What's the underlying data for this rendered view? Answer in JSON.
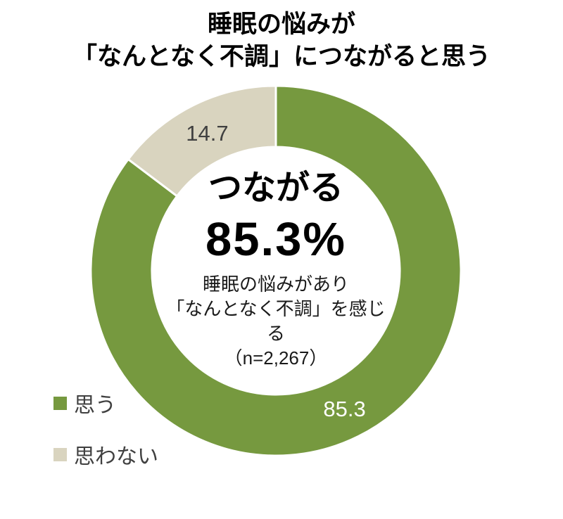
{
  "title": {
    "line1": "睡眠の悩みが",
    "line2": "「なんとなく不調」につながると思う"
  },
  "center": {
    "headline": "つながる",
    "percent": "85.3%",
    "sub1": "睡眠の悩みがあり",
    "sub2": "「なんとなく不調」を感じる",
    "sub3": "（n=2,267）"
  },
  "chart_data": {
    "type": "pie",
    "subtype": "donut",
    "title": "睡眠の悩みが「なんとなく不調」につながると思う",
    "categories": [
      "思う",
      "思わない"
    ],
    "values": [
      85.3,
      14.7
    ],
    "unit": "%",
    "sample_note": "（n=2,267）",
    "start_angle_deg": 0,
    "direction": "clockwise",
    "separator_color": "#FFFFFF",
    "slices": [
      {
        "name": "思う",
        "value": 85.3,
        "color": "#76993F",
        "data_label": "85.3",
        "label_color": "#FFFFFF"
      },
      {
        "name": "思わない",
        "value": 14.7,
        "color": "#D9D4BF",
        "data_label": "14.7",
        "label_color": "#404040"
      }
    ],
    "legend_position": "bottom-left",
    "center_annotation": "つながる 85.3% 睡眠の悩みがあり「なんとなく不調」を感じる（n=2,267）"
  }
}
